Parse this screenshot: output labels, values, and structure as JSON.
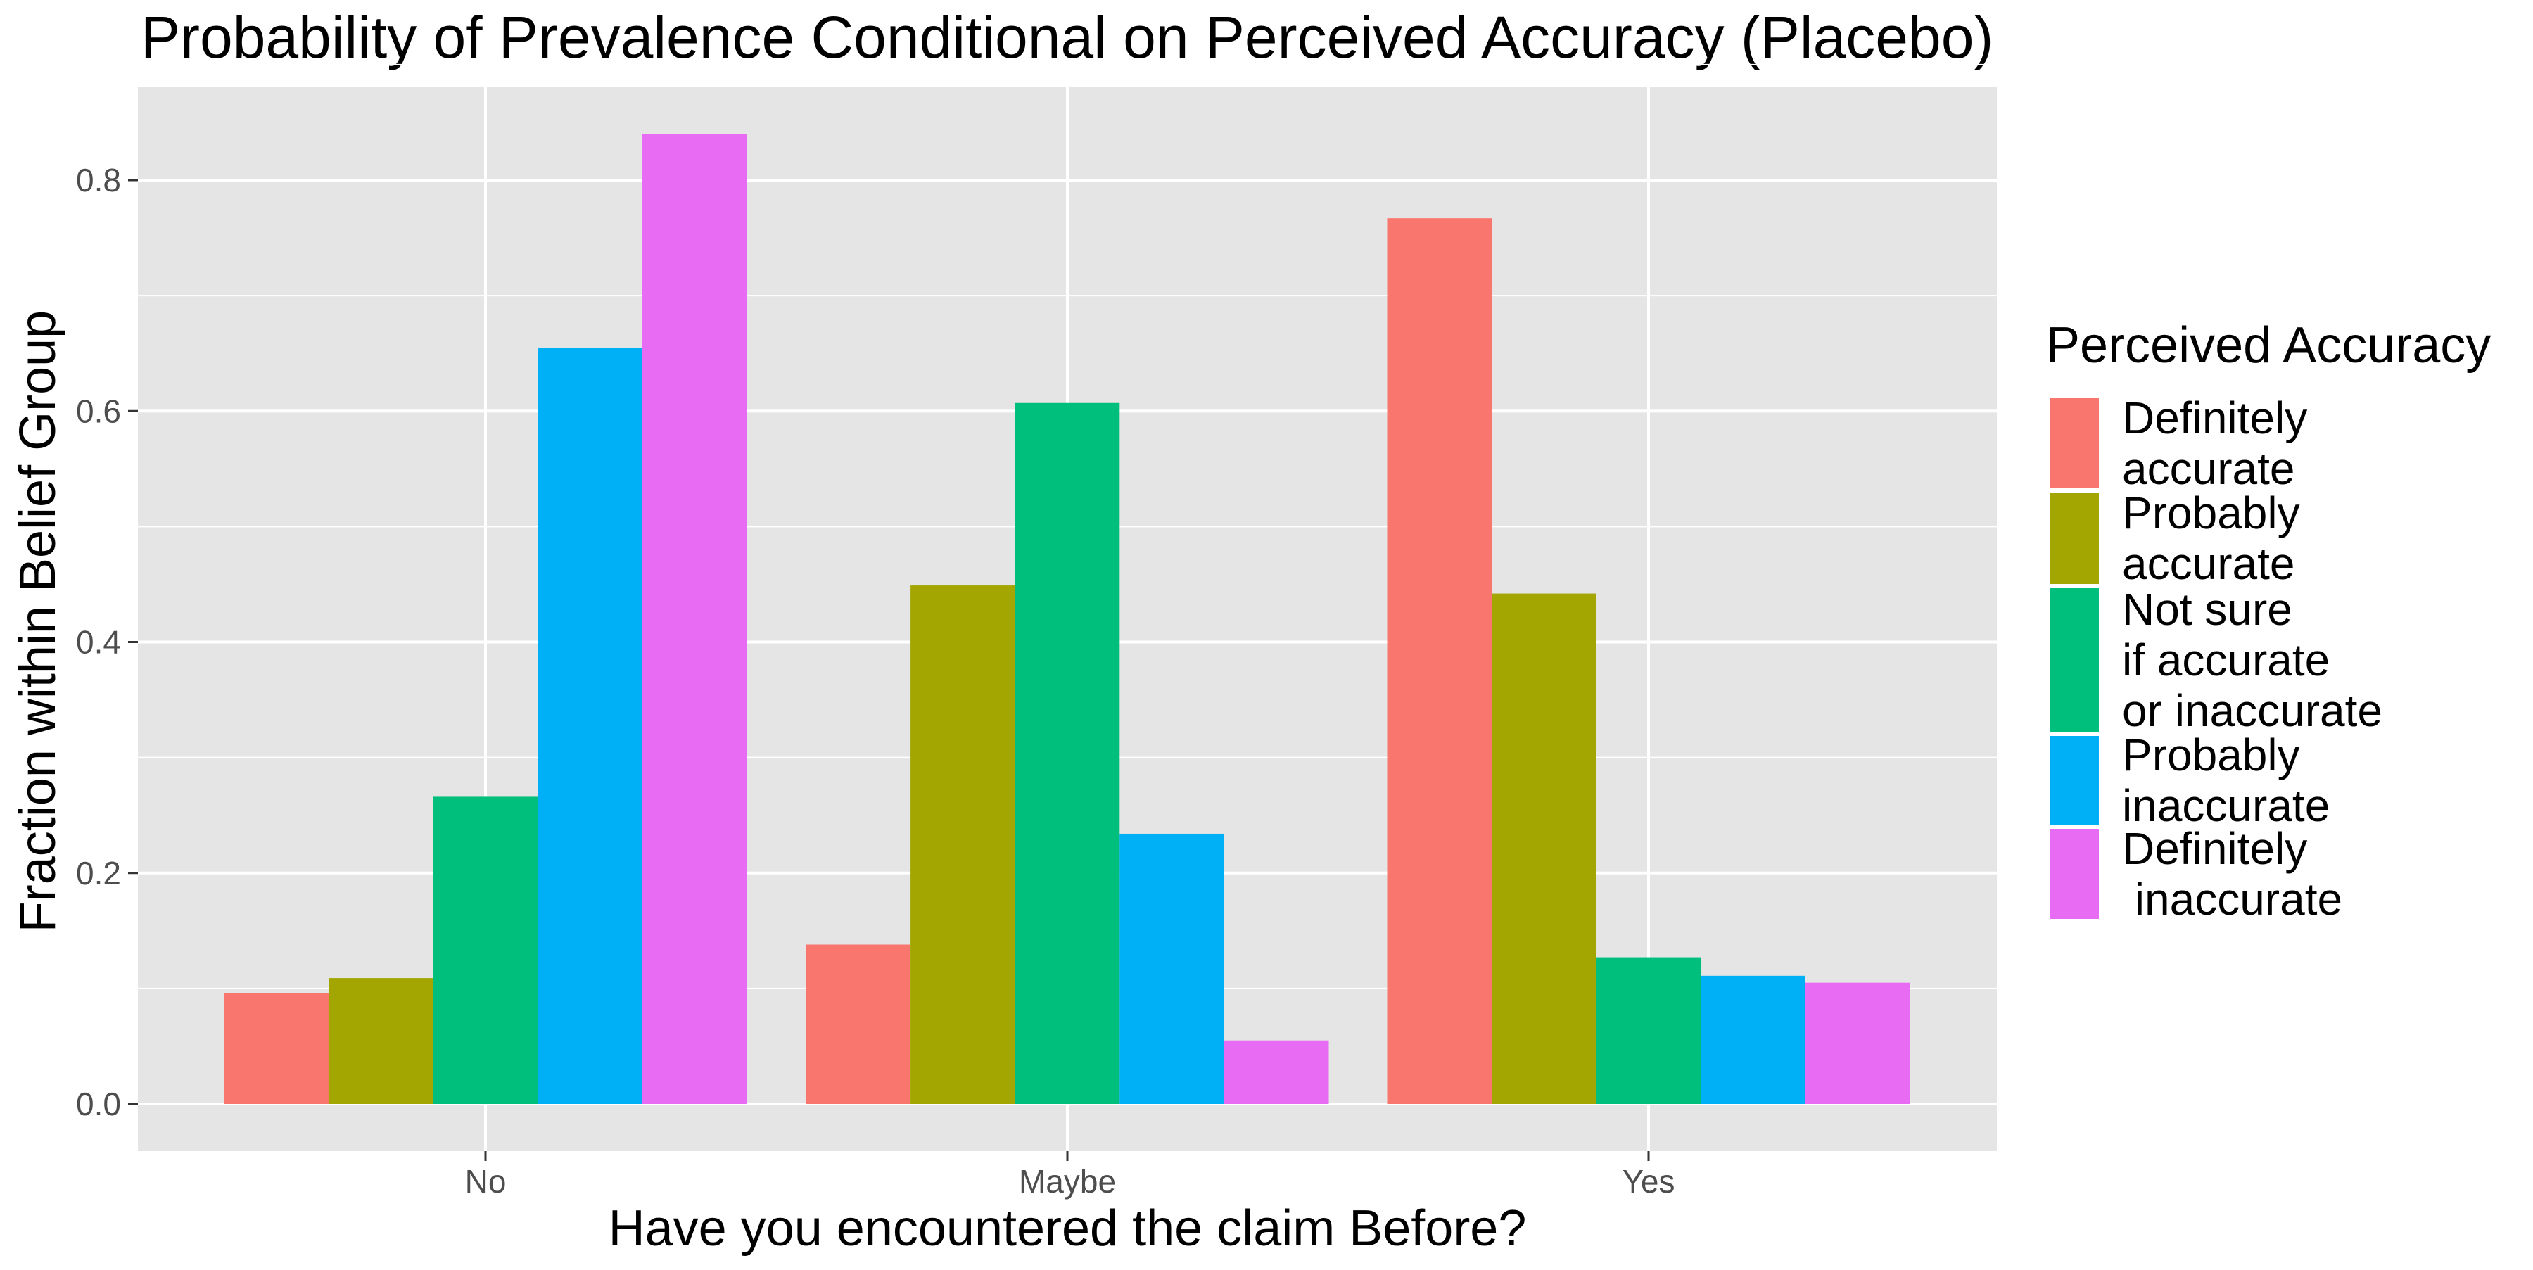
{
  "chart_data": {
    "type": "bar",
    "title": "Probability of Prevalence Conditional on Perceived Accuracy (Placebo)",
    "xlabel": "Have you encountered the claim Before?",
    "ylabel": "Fraction within Belief Group",
    "categories": [
      "No",
      "Maybe",
      "Yes"
    ],
    "y_ticks": [
      0.0,
      0.2,
      0.4,
      0.6,
      0.8
    ],
    "y_tick_labels": [
      "0.0",
      "0.2",
      "0.4",
      "0.6",
      "0.8"
    ],
    "ylim": [
      -0.04,
      0.88
    ],
    "grid": true,
    "legend_position": "right",
    "legend_title": "Perceived Accuracy",
    "panel_background": "#e5e5e5",
    "series": [
      {
        "name": "Definitely accurate",
        "label_lines": [
          "Definitely",
          "accurate"
        ],
        "color": "#f8766d",
        "values": [
          0.096,
          0.138,
          0.767
        ]
      },
      {
        "name": "Probably accurate",
        "label_lines": [
          "Probably",
          "accurate"
        ],
        "color": "#a3a500",
        "values": [
          0.109,
          0.449,
          0.442
        ]
      },
      {
        "name": "Not sure if accurate or inaccurate",
        "label_lines": [
          "Not sure",
          "if accurate",
          "or inaccurate"
        ],
        "color": "#00bf7d",
        "values": [
          0.266,
          0.607,
          0.127
        ]
      },
      {
        "name": "Probably inaccurate",
        "label_lines": [
          "Probably",
          "inaccurate"
        ],
        "color": "#00b0f6",
        "values": [
          0.655,
          0.234,
          0.111
        ]
      },
      {
        "name": "Definitely inaccurate",
        "label_lines": [
          "Definitely",
          " inaccurate"
        ],
        "color": "#e76bf3",
        "values": [
          0.84,
          0.055,
          0.105
        ]
      }
    ]
  }
}
